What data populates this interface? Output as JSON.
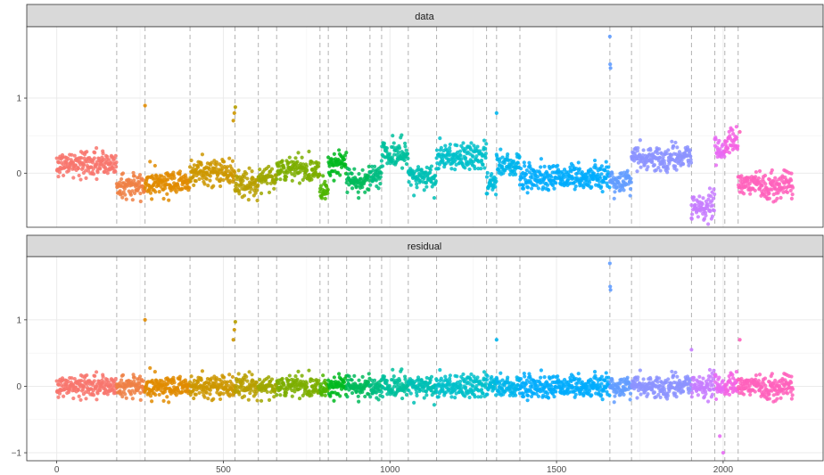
{
  "chart_data": {
    "type": "scatter",
    "facets": [
      "data",
      "residual"
    ],
    "x_ticks": [
      0,
      500,
      1000,
      1500,
      2000
    ],
    "xlim": [
      -90,
      2300
    ],
    "panels": [
      {
        "strip_label": "data",
        "y_ticks": [
          0,
          1
        ],
        "ylim": [
          -0.72,
          1.95
        ]
      },
      {
        "strip_label": "residual",
        "y_ticks": [
          -1,
          0,
          1
        ],
        "ylim": [
          -1.12,
          1.95
        ]
      }
    ],
    "changepoints": [
      180,
      265,
      400,
      535,
      605,
      660,
      790,
      815,
      870,
      940,
      975,
      1055,
      1140,
      1290,
      1320,
      1390,
      1660,
      1725,
      1905,
      1975,
      2005,
      2045
    ],
    "segments": [
      {
        "start": 0,
        "end": 180,
        "data_mean": 0.12,
        "color": "#F8766D"
      },
      {
        "start": 180,
        "end": 265,
        "data_mean": -0.17,
        "color": "#EE8044"
      },
      {
        "start": 265,
        "end": 400,
        "data_mean": -0.12,
        "color": "#E08B00"
      },
      {
        "start": 400,
        "end": 535,
        "data_mean": 0.02,
        "color": "#CC9600"
      },
      {
        "start": 535,
        "end": 605,
        "data_mean": -0.15,
        "color": "#B79F00"
      },
      {
        "start": 605,
        "end": 660,
        "data_mean": -0.05,
        "color": "#9DA700"
      },
      {
        "start": 660,
        "end": 790,
        "data_mean": 0.05,
        "color": "#7CAE00"
      },
      {
        "start": 790,
        "end": 815,
        "data_mean": -0.2,
        "color": "#4EB400"
      },
      {
        "start": 815,
        "end": 870,
        "data_mean": 0.12,
        "color": "#00B81F"
      },
      {
        "start": 870,
        "end": 940,
        "data_mean": -0.1,
        "color": "#00BA5A"
      },
      {
        "start": 940,
        "end": 975,
        "data_mean": 0.0,
        "color": "#00BC80"
      },
      {
        "start": 975,
        "end": 1055,
        "data_mean": 0.25,
        "color": "#00BF9C"
      },
      {
        "start": 1055,
        "end": 1140,
        "data_mean": -0.05,
        "color": "#00C0B5"
      },
      {
        "start": 1140,
        "end": 1290,
        "data_mean": 0.22,
        "color": "#00BFCA"
      },
      {
        "start": 1290,
        "end": 1320,
        "data_mean": -0.15,
        "color": "#00BBDC"
      },
      {
        "start": 1320,
        "end": 1390,
        "data_mean": 0.12,
        "color": "#00B5EC"
      },
      {
        "start": 1390,
        "end": 1660,
        "data_mean": -0.05,
        "color": "#00ABFD"
      },
      {
        "start": 1660,
        "end": 1725,
        "data_mean": -0.1,
        "color": "#619CFF"
      },
      {
        "start": 1725,
        "end": 1905,
        "data_mean": 0.2,
        "color": "#8C93FF"
      },
      {
        "start": 1905,
        "end": 1975,
        "data_mean": -0.45,
        "color": "#C77CFF"
      },
      {
        "start": 1975,
        "end": 2005,
        "data_mean": 0.3,
        "color": "#E76BF3"
      },
      {
        "start": 2005,
        "end": 2045,
        "data_mean": 0.4,
        "color": "#F564E3"
      },
      {
        "start": 2045,
        "end": 2210,
        "data_mean": -0.15,
        "color": "#FF62BC"
      }
    ],
    "outliers_data": [
      [
        265,
        0.9
      ],
      [
        530,
        0.7
      ],
      [
        533,
        0.8
      ],
      [
        536,
        0.88
      ],
      [
        1320,
        0.8
      ],
      [
        1660,
        1.82
      ],
      [
        1661,
        1.45
      ],
      [
        1662,
        1.4
      ],
      [
        1905,
        -0.6
      ],
      [
        2050,
        0.55
      ]
    ],
    "outliers_residual": [
      [
        265,
        1.0
      ],
      [
        530,
        0.7
      ],
      [
        533,
        0.85
      ],
      [
        536,
        0.97
      ],
      [
        1320,
        0.7
      ],
      [
        1660,
        1.85
      ],
      [
        1661,
        1.5
      ],
      [
        1662,
        1.45
      ],
      [
        1905,
        0.55
      ],
      [
        2000,
        -1.0
      ],
      [
        1990,
        -0.75
      ],
      [
        2050,
        0.7
      ]
    ]
  }
}
